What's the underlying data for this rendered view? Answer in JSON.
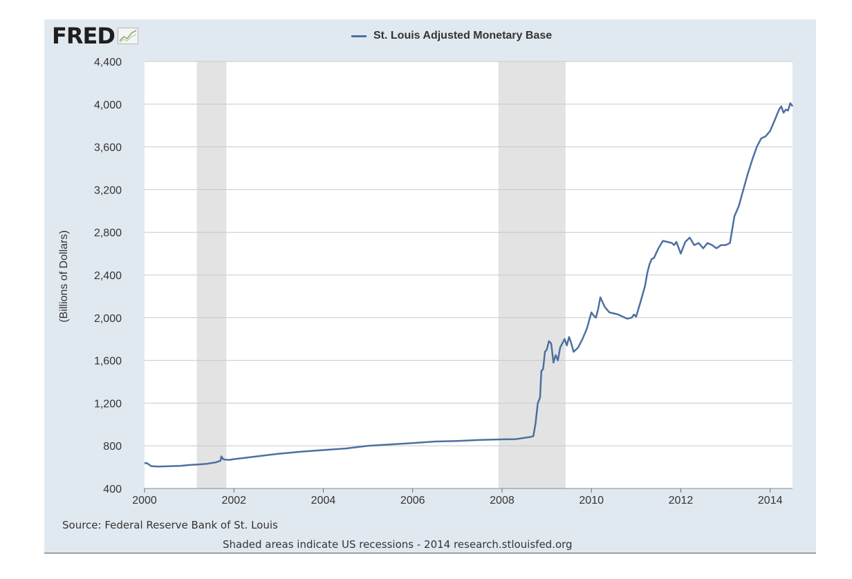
{
  "logo": {
    "text": "FRED"
  },
  "legend": {
    "label": "St. Louis Adjusted Monetary Base"
  },
  "source": "Source: Federal Reserve Bank of St. Louis",
  "note": "Shaded areas indicate US recessions - 2014 research.stlouisfed.org",
  "colors": {
    "line": "#4c6fa1",
    "background": "#e1e9f0",
    "plot": "#ffffff",
    "recession": "#e3e3e3",
    "grid": "#c8c8c8"
  },
  "chart_data": {
    "type": "line",
    "title": "",
    "xlabel": "",
    "ylabel": "(Billions of Dollars)",
    "xlim": [
      2000.0,
      2014.5
    ],
    "ylim": [
      400,
      4400
    ],
    "grid": true,
    "legend_position": "top-center",
    "y_ticks": [
      400,
      800,
      1200,
      1600,
      2000,
      2400,
      2800,
      3200,
      3600,
      4000,
      4400
    ],
    "y_tick_labels": [
      "400",
      "800",
      "1,200",
      "1,600",
      "2,000",
      "2,400",
      "2,800",
      "3,200",
      "3,600",
      "4,000",
      "4,400"
    ],
    "x_ticks": [
      2000,
      2002,
      2004,
      2006,
      2008,
      2010,
      2012,
      2014
    ],
    "x_tick_labels": [
      "2000",
      "2002",
      "2004",
      "2006",
      "2008",
      "2010",
      "2012",
      "2014"
    ],
    "recessions": [
      [
        2001.17,
        2001.83
      ],
      [
        2007.92,
        2009.42
      ]
    ],
    "series": [
      {
        "name": "St. Louis Adjusted Monetary Base",
        "x": [
          2000.0,
          2000.04,
          2000.08,
          2000.15,
          2000.3,
          2000.5,
          2000.8,
          2001.0,
          2001.2,
          2001.4,
          2001.6,
          2001.7,
          2001.72,
          2001.76,
          2001.8,
          2001.9,
          2002.0,
          2002.2,
          2002.5,
          2002.8,
          2003.0,
          2003.5,
          2004.0,
          2004.5,
          2005.0,
          2005.5,
          2006.0,
          2006.5,
          2007.0,
          2007.5,
          2008.0,
          2008.3,
          2008.6,
          2008.7,
          2008.75,
          2008.8,
          2008.85,
          2008.88,
          2008.92,
          2008.96,
          2009.0,
          2009.05,
          2009.1,
          2009.15,
          2009.2,
          2009.25,
          2009.3,
          2009.35,
          2009.4,
          2009.45,
          2009.5,
          2009.55,
          2009.6,
          2009.7,
          2009.8,
          2009.9,
          2010.0,
          2010.05,
          2010.1,
          2010.15,
          2010.2,
          2010.3,
          2010.4,
          2010.5,
          2010.6,
          2010.7,
          2010.8,
          2010.9,
          2010.95,
          2011.0,
          2011.1,
          2011.2,
          2011.25,
          2011.3,
          2011.35,
          2011.4,
          2011.5,
          2011.6,
          2011.7,
          2011.8,
          2011.85,
          2011.9,
          2012.0,
          2012.1,
          2012.2,
          2012.3,
          2012.4,
          2012.5,
          2012.6,
          2012.7,
          2012.8,
          2012.9,
          2013.0,
          2013.1,
          2013.2,
          2013.3,
          2013.4,
          2013.5,
          2013.6,
          2013.7,
          2013.8,
          2013.9,
          2014.0,
          2014.1,
          2014.2,
          2014.25,
          2014.3,
          2014.35,
          2014.4,
          2014.45,
          2014.5
        ],
        "values": [
          635,
          640,
          630,
          610,
          605,
          608,
          612,
          620,
          625,
          632,
          645,
          660,
          700,
          675,
          670,
          668,
          675,
          685,
          700,
          715,
          725,
          745,
          760,
          775,
          800,
          812,
          825,
          840,
          845,
          855,
          860,
          862,
          880,
          890,
          1010,
          1200,
          1250,
          1500,
          1520,
          1680,
          1700,
          1780,
          1760,
          1580,
          1650,
          1600,
          1720,
          1760,
          1800,
          1740,
          1820,
          1760,
          1680,
          1720,
          1800,
          1900,
          2050,
          2020,
          2000,
          2080,
          2190,
          2100,
          2050,
          2040,
          2030,
          2010,
          1990,
          2000,
          2030,
          2010,
          2150,
          2300,
          2420,
          2500,
          2550,
          2560,
          2650,
          2720,
          2710,
          2700,
          2680,
          2710,
          2600,
          2710,
          2750,
          2680,
          2700,
          2650,
          2700,
          2680,
          2650,
          2680,
          2680,
          2700,
          2950,
          3050,
          3200,
          3350,
          3480,
          3600,
          3680,
          3700,
          3750,
          3850,
          3950,
          3980,
          3920,
          3950,
          3940,
          4010,
          3980
        ]
      }
    ]
  }
}
